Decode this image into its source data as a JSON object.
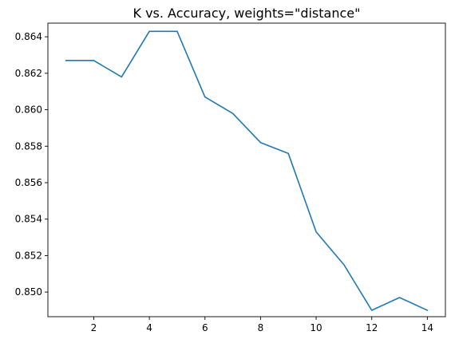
{
  "chart_data": {
    "type": "line",
    "title": "K vs. Accuracy, weights=\"distance\"",
    "xlabel": "",
    "ylabel": "",
    "xlim": [
      0.35,
      14.65
    ],
    "ylim": [
      0.84865,
      0.86475
    ],
    "xticks": [
      2,
      4,
      6,
      8,
      10,
      12,
      14
    ],
    "xtick_labels": [
      "2",
      "4",
      "6",
      "8",
      "10",
      "12",
      "14"
    ],
    "yticks": [
      0.85,
      0.852,
      0.854,
      0.856,
      0.858,
      0.86,
      0.862,
      0.864
    ],
    "ytick_labels": [
      "0.850",
      "0.852",
      "0.854",
      "0.856",
      "0.858",
      "0.860",
      "0.862",
      "0.864"
    ],
    "grid": false,
    "series": [
      {
        "color": "#1f77b4",
        "x": [
          1,
          2,
          3,
          4,
          5,
          6,
          7,
          8,
          9,
          10,
          11,
          12,
          13,
          14
        ],
        "y": [
          0.8627,
          0.8627,
          0.8618,
          0.8643,
          0.8643,
          0.8607,
          0.8598,
          0.8582,
          0.8576,
          0.8533,
          0.8515,
          0.849,
          0.8497,
          0.849
        ]
      }
    ]
  }
}
